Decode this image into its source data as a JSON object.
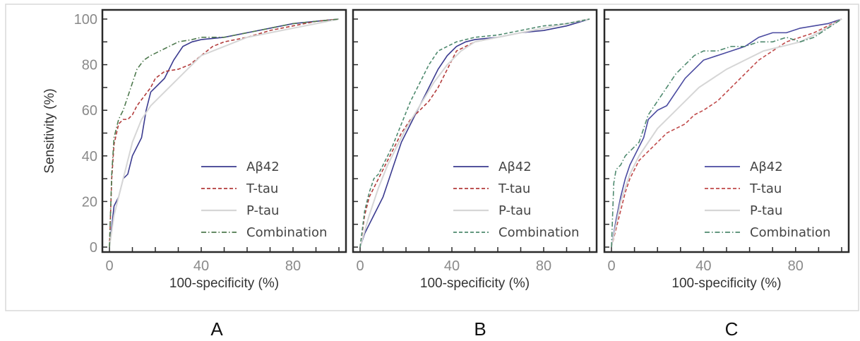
{
  "chart_data": [
    {
      "type": "line",
      "panel": "A",
      "xlabel": "100-specificity (%)",
      "ylabel": "Sensitivity (%)",
      "xlim": [
        0,
        100
      ],
      "ylim": [
        0,
        100
      ],
      "xticks": [
        0,
        40,
        80
      ],
      "yticks": [
        0,
        20,
        40,
        60,
        80,
        100
      ],
      "legend_position": "bottom-right",
      "series": [
        {
          "name": "Aβ42",
          "color": "#3b3b8f",
          "dash": "solid",
          "x": [
            0,
            2,
            4,
            6,
            8,
            10,
            12,
            14,
            16,
            18,
            20,
            24,
            28,
            32,
            36,
            40,
            50,
            60,
            70,
            80,
            90,
            100
          ],
          "y": [
            0,
            18,
            22,
            30,
            32,
            40,
            44,
            48,
            60,
            68,
            70,
            74,
            82,
            88,
            90,
            91,
            92,
            94,
            96,
            98,
            99,
            100
          ]
        },
        {
          "name": "T-tau",
          "color": "#b23b3b",
          "dash": "dashed",
          "x": [
            0,
            1,
            2,
            4,
            6,
            8,
            10,
            12,
            15,
            18,
            20,
            24,
            30,
            35,
            40,
            45,
            50,
            60,
            70,
            80,
            90,
            100
          ],
          "y": [
            0,
            30,
            45,
            54,
            56,
            56,
            58,
            62,
            66,
            70,
            74,
            77,
            78,
            80,
            84,
            88,
            90,
            92,
            95,
            97,
            99,
            100
          ]
        },
        {
          "name": "P-tau",
          "color": "#d6d6d6",
          "dash": "solid",
          "x": [
            0,
            2,
            4,
            6,
            8,
            10,
            14,
            18,
            22,
            28,
            34,
            40,
            50,
            60,
            70,
            80,
            90,
            100
          ],
          "y": [
            0,
            14,
            22,
            30,
            38,
            46,
            56,
            62,
            66,
            72,
            78,
            84,
            88,
            92,
            94,
            96,
            98,
            100
          ]
        },
        {
          "name": "Combination",
          "color": "#4f7a4f",
          "dash": "dashdot",
          "x": [
            0,
            1,
            2,
            4,
            6,
            8,
            10,
            12,
            15,
            18,
            22,
            26,
            30,
            36,
            40,
            50,
            60,
            70,
            80,
            90,
            100
          ],
          "y": [
            0,
            32,
            48,
            56,
            60,
            66,
            72,
            78,
            82,
            84,
            86,
            88,
            90,
            91,
            92,
            92,
            94,
            96,
            98,
            99,
            100
          ]
        }
      ]
    },
    {
      "type": "line",
      "panel": "B",
      "xlabel": "100-specificity (%)",
      "ylabel": "",
      "xlim": [
        0,
        100
      ],
      "ylim": [
        0,
        100
      ],
      "xticks": [
        0,
        40,
        80
      ],
      "yticks": [
        0,
        20,
        40,
        60,
        80,
        100
      ],
      "legend_position": "bottom-right",
      "series": [
        {
          "name": "Aβ42",
          "color": "#3b3b8f",
          "dash": "solid",
          "x": [
            0,
            2,
            4,
            6,
            8,
            10,
            14,
            18,
            22,
            26,
            30,
            34,
            38,
            42,
            46,
            50,
            60,
            70,
            80,
            90,
            100
          ],
          "y": [
            0,
            6,
            10,
            14,
            18,
            22,
            34,
            46,
            54,
            62,
            70,
            78,
            84,
            88,
            90,
            91,
            92,
            94,
            95,
            97,
            100
          ]
        },
        {
          "name": "T-tau",
          "color": "#b23b3b",
          "dash": "dashed",
          "x": [
            0,
            2,
            4,
            6,
            8,
            10,
            14,
            18,
            22,
            26,
            30,
            34,
            38,
            42,
            46,
            50,
            60,
            70,
            80,
            90,
            100
          ],
          "y": [
            0,
            14,
            22,
            26,
            30,
            34,
            42,
            50,
            56,
            60,
            64,
            70,
            78,
            86,
            88,
            90,
            92,
            94,
            96,
            98,
            100
          ]
        },
        {
          "name": "P-tau",
          "color": "#d6d6d6",
          "dash": "solid",
          "x": [
            0,
            4,
            8,
            12,
            16,
            20,
            26,
            32,
            38,
            44,
            50,
            60,
            70,
            80,
            90,
            100
          ],
          "y": [
            0,
            14,
            26,
            36,
            44,
            52,
            62,
            72,
            80,
            86,
            90,
            92,
            94,
            96,
            98,
            100
          ]
        },
        {
          "name": "Combination",
          "color": "#4f8a6f",
          "dash": "dashed",
          "x": [
            0,
            2,
            4,
            6,
            8,
            10,
            14,
            18,
            22,
            26,
            30,
            34,
            38,
            42,
            46,
            50,
            60,
            70,
            80,
            90,
            100
          ],
          "y": [
            0,
            16,
            24,
            30,
            32,
            36,
            44,
            54,
            64,
            72,
            80,
            86,
            88,
            90,
            91,
            92,
            93,
            95,
            97,
            98,
            100
          ]
        }
      ]
    },
    {
      "type": "line",
      "panel": "C",
      "xlabel": "100-specificity (%)",
      "ylabel": "",
      "xlim": [
        0,
        100
      ],
      "ylim": [
        0,
        100
      ],
      "xticks": [
        0,
        40,
        80
      ],
      "yticks": [
        0,
        20,
        40,
        60,
        80,
        100
      ],
      "legend_position": "bottom-right",
      "series": [
        {
          "name": "Aβ42",
          "color": "#4a4aa0",
          "dash": "solid",
          "x": [
            0,
            2,
            4,
            6,
            8,
            10,
            12,
            14,
            16,
            20,
            24,
            28,
            32,
            36,
            40,
            46,
            52,
            58,
            64,
            70,
            76,
            82,
            88,
            94,
            100
          ],
          "y": [
            0,
            12,
            22,
            30,
            36,
            40,
            44,
            48,
            56,
            60,
            62,
            68,
            74,
            78,
            82,
            84,
            86,
            88,
            92,
            94,
            94,
            96,
            97,
            98,
            100
          ]
        },
        {
          "name": "T-tau",
          "color": "#c04a4a",
          "dash": "dashed",
          "x": [
            0,
            2,
            4,
            6,
            8,
            10,
            12,
            16,
            20,
            24,
            28,
            32,
            36,
            40,
            46,
            52,
            58,
            64,
            70,
            76,
            82,
            88,
            94,
            100
          ],
          "y": [
            0,
            8,
            16,
            24,
            30,
            34,
            38,
            42,
            46,
            50,
            52,
            54,
            58,
            60,
            64,
            70,
            76,
            82,
            86,
            90,
            92,
            94,
            97,
            100
          ]
        },
        {
          "name": "P-tau",
          "color": "#d6d6d6",
          "dash": "solid",
          "x": [
            0,
            4,
            8,
            12,
            16,
            20,
            26,
            32,
            38,
            44,
            50,
            58,
            66,
            74,
            82,
            90,
            100
          ],
          "y": [
            0,
            20,
            32,
            40,
            46,
            52,
            58,
            64,
            70,
            74,
            78,
            82,
            86,
            88,
            90,
            94,
            100
          ]
        },
        {
          "name": "Combination",
          "color": "#4f8a6f",
          "dash": "dashdot",
          "x": [
            0,
            1,
            2,
            4,
            6,
            8,
            10,
            12,
            14,
            16,
            20,
            24,
            28,
            32,
            36,
            40,
            46,
            52,
            58,
            64,
            70,
            76,
            82,
            88,
            94,
            100
          ],
          "y": [
            0,
            28,
            34,
            36,
            40,
            42,
            44,
            46,
            52,
            58,
            64,
            70,
            76,
            80,
            84,
            86,
            86,
            88,
            88,
            90,
            90,
            92,
            90,
            92,
            96,
            100
          ]
        }
      ]
    }
  ],
  "panel_labels": [
    "A",
    "B",
    "C"
  ]
}
